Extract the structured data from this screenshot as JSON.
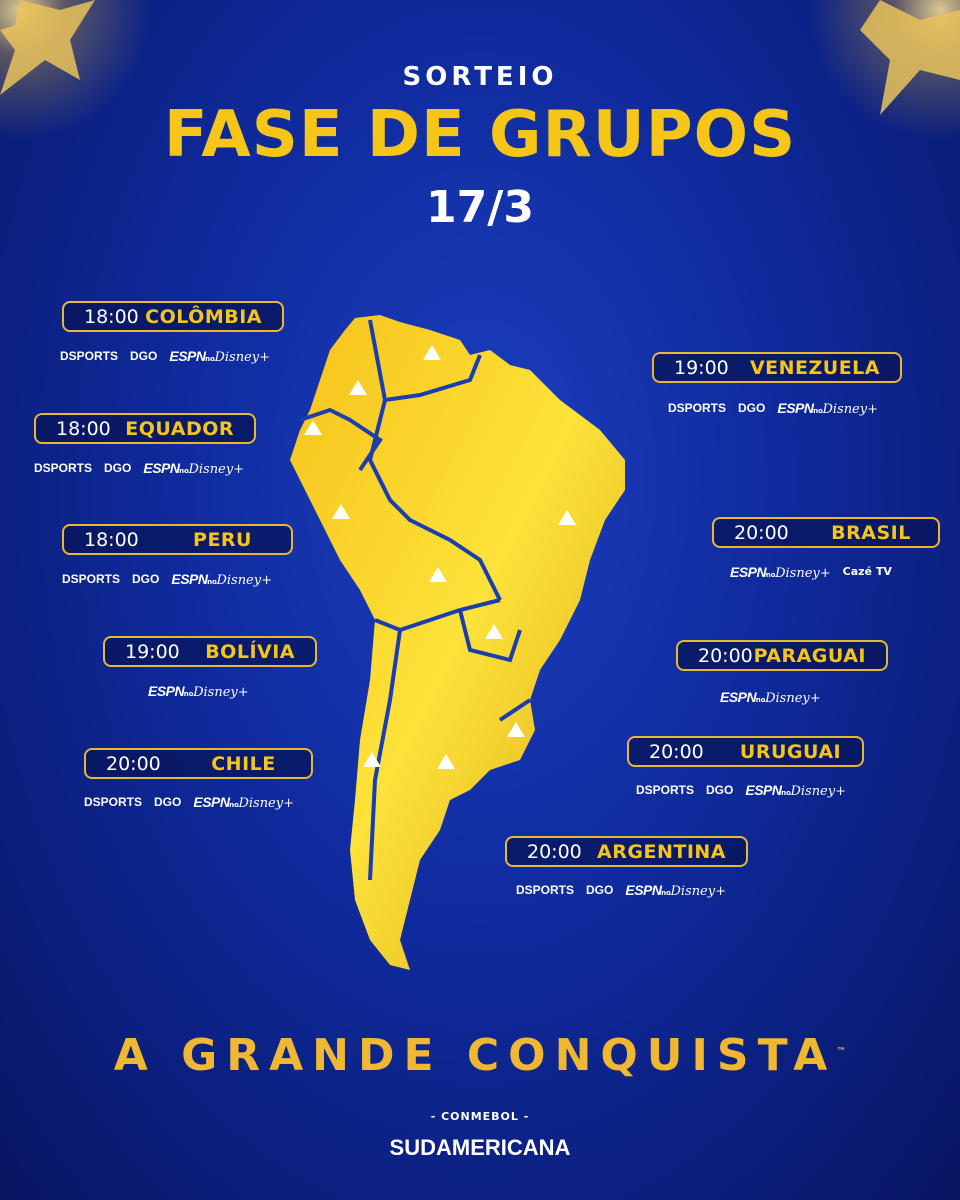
{
  "header": {
    "kicker": "SORTEIO",
    "title": "FASE DE GRUPOS",
    "date": "17/3"
  },
  "colors": {
    "gold": "#f5c518",
    "background": "#0f2a9c",
    "border": "#e8b830"
  },
  "schedule": [
    {
      "time": "18:00",
      "country": "COLÔMBIA",
      "broadcasters": [
        "DSPORTS",
        "DGO",
        "ESPN no Disney+"
      ]
    },
    {
      "time": "18:00",
      "country": "EQUADOR",
      "broadcasters": [
        "DSPORTS",
        "DGO",
        "ESPN no Disney+"
      ]
    },
    {
      "time": "18:00",
      "country": "PERU",
      "broadcasters": [
        "DSPORTS",
        "DGO",
        "ESPN no Disney+"
      ]
    },
    {
      "time": "19:00",
      "country": "BOLÍVIA",
      "broadcasters": [
        "ESPN no Disney+"
      ]
    },
    {
      "time": "20:00",
      "country": "CHILE",
      "broadcasters": [
        "DSPORTS",
        "DGO",
        "ESPN no Disney+"
      ]
    },
    {
      "time": "19:00",
      "country": "VENEZUELA",
      "broadcasters": [
        "DSPORTS",
        "DGO",
        "ESPN no Disney+"
      ]
    },
    {
      "time": "20:00",
      "country": "BRASIL",
      "broadcasters": [
        "ESPN no Disney+",
        "Cazé TV"
      ]
    },
    {
      "time": "20:00",
      "country": "PARAGUAI",
      "broadcasters": [
        "ESPN no Disney+"
      ]
    },
    {
      "time": "20:00",
      "country": "URUGUAI",
      "broadcasters": [
        "DSPORTS",
        "DGO",
        "ESPN no Disney+"
      ]
    },
    {
      "time": "20:00",
      "country": "ARGENTINA",
      "broadcasters": [
        "DSPORTS",
        "DGO",
        "ESPN no Disney+"
      ]
    }
  ],
  "footer": {
    "slogan": "A GRANDE CONQUISTA",
    "trademark": "™",
    "org": "- CONMEBOL -",
    "brand": "SUDAMERICANA"
  }
}
